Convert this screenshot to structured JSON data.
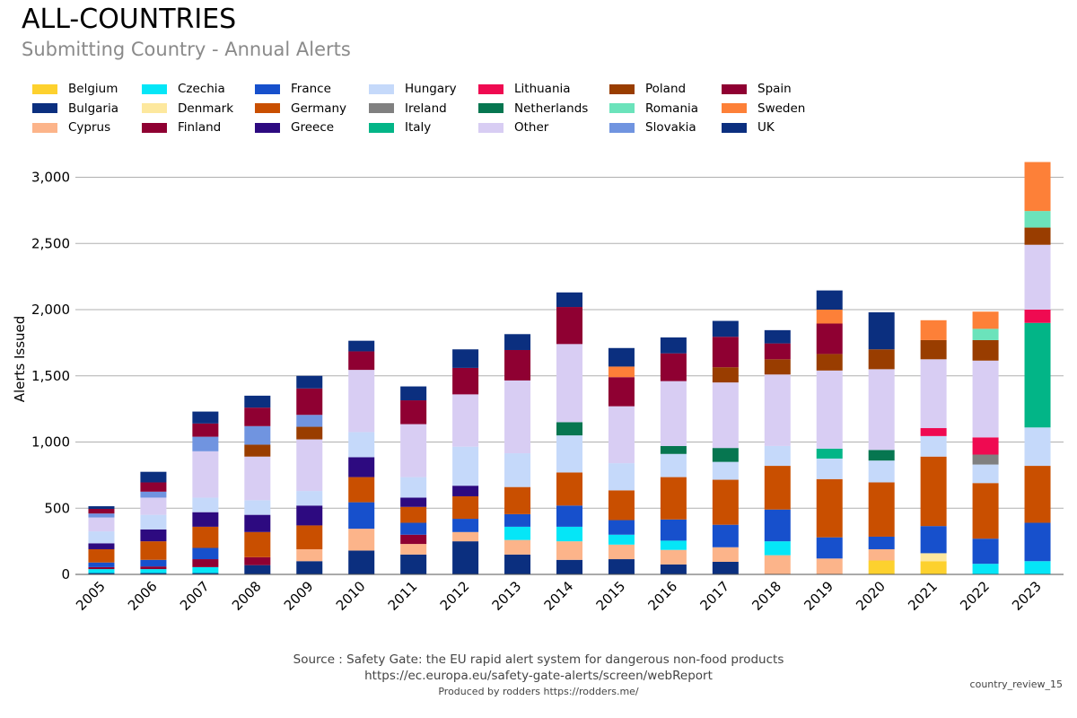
{
  "page": {
    "title": "ALL-COUNTRIES",
    "subtitle": "Submitting Country - Annual Alerts",
    "source_line1": "Source : Safety Gate: the EU rapid alert system for dangerous non-food products",
    "source_line2": "https://ec.europa.eu/safety-gate-alerts/screen/webReport",
    "credit": "Produced by rodders https://rodders.me/",
    "review_id": "country_review_15"
  },
  "chart_data": {
    "type": "bar",
    "stacked": true,
    "ylabel": "Alerts Issued",
    "xlabel": "",
    "ylim": [
      0,
      3200
    ],
    "yticks": [
      0,
      500,
      1000,
      1500,
      2000,
      2500,
      3000
    ],
    "ytick_labels": [
      "0",
      "500",
      "1,000",
      "1,500",
      "2,000",
      "2,500",
      "3,000"
    ],
    "grid": "horizontal",
    "legend_position": "top",
    "categories": [
      "2005",
      "2006",
      "2007",
      "2008",
      "2009",
      "2010",
      "2011",
      "2012",
      "2013",
      "2014",
      "2015",
      "2016",
      "2017",
      "2018",
      "2019",
      "2020",
      "2021",
      "2022",
      "2023"
    ],
    "series": [
      {
        "name": "Belgium",
        "color": "#fdd12e",
        "values": [
          0,
          0,
          0,
          0,
          0,
          0,
          0,
          0,
          0,
          0,
          0,
          0,
          0,
          0,
          0,
          105,
          100,
          0,
          0
        ]
      },
      {
        "name": "Bulgaria",
        "color": "#0b2f7f",
        "values": [
          10,
          10,
          10,
          70,
          100,
          180,
          150,
          250,
          150,
          110,
          115,
          75,
          95,
          0,
          0,
          0,
          0,
          0,
          0
        ]
      },
      {
        "name": "Cyprus",
        "color": "#fcb48a",
        "values": [
          0,
          0,
          0,
          0,
          90,
          165,
          80,
          70,
          110,
          140,
          110,
          110,
          110,
          145,
          120,
          85,
          0,
          0,
          0
        ]
      },
      {
        "name": "Czechia",
        "color": "#05e6f7",
        "values": [
          30,
          30,
          45,
          0,
          0,
          0,
          0,
          0,
          100,
          110,
          75,
          70,
          0,
          105,
          0,
          0,
          0,
          80,
          100
        ]
      },
      {
        "name": "Denmark",
        "color": "#fde89e",
        "values": [
          0,
          0,
          0,
          0,
          0,
          0,
          0,
          0,
          0,
          0,
          0,
          0,
          0,
          0,
          0,
          0,
          60,
          0,
          0
        ]
      },
      {
        "name": "Finland",
        "color": "#8f0032",
        "values": [
          15,
          20,
          60,
          60,
          0,
          0,
          70,
          0,
          0,
          0,
          0,
          0,
          0,
          0,
          0,
          0,
          0,
          0,
          0
        ]
      },
      {
        "name": "France",
        "color": "#1750cc",
        "values": [
          35,
          50,
          85,
          0,
          0,
          200,
          90,
          100,
          95,
          160,
          110,
          160,
          170,
          240,
          160,
          95,
          205,
          190,
          290
        ]
      },
      {
        "name": "Germany",
        "color": "#c94f00",
        "values": [
          100,
          140,
          160,
          190,
          180,
          190,
          120,
          170,
          205,
          250,
          225,
          320,
          340,
          330,
          440,
          410,
          525,
          420,
          430
        ]
      },
      {
        "name": "Greece",
        "color": "#2d0a80",
        "values": [
          45,
          90,
          110,
          130,
          150,
          150,
          70,
          80,
          0,
          0,
          0,
          0,
          0,
          0,
          0,
          0,
          0,
          0,
          0
        ]
      },
      {
        "name": "Hungary",
        "color": "#c5d9fa",
        "values": [
          90,
          110,
          110,
          110,
          110,
          190,
          155,
          295,
          255,
          280,
          205,
          175,
          135,
          150,
          155,
          165,
          155,
          140,
          290
        ]
      },
      {
        "name": "Ireland",
        "color": "#808080",
        "values": [
          0,
          0,
          0,
          0,
          0,
          0,
          0,
          0,
          0,
          0,
          0,
          0,
          0,
          0,
          0,
          0,
          0,
          75,
          0
        ]
      },
      {
        "name": "Italy",
        "color": "#02b587",
        "values": [
          0,
          0,
          0,
          0,
          0,
          0,
          0,
          0,
          0,
          0,
          0,
          0,
          0,
          0,
          75,
          0,
          0,
          0,
          790
        ]
      },
      {
        "name": "Lithuania",
        "color": "#ef0a51",
        "values": [
          0,
          0,
          0,
          0,
          0,
          0,
          0,
          0,
          0,
          0,
          0,
          0,
          0,
          0,
          0,
          0,
          60,
          130,
          100
        ]
      },
      {
        "name": "Netherlands",
        "color": "#067650",
        "values": [
          0,
          0,
          0,
          0,
          0,
          0,
          0,
          0,
          0,
          100,
          0,
          60,
          105,
          0,
          0,
          80,
          0,
          0,
          0
        ]
      },
      {
        "name": "Other",
        "color": "#d8cdf3",
        "values": [
          105,
          130,
          350,
          330,
          390,
          470,
          400,
          395,
          550,
          590,
          430,
          490,
          495,
          540,
          590,
          610,
          520,
          580,
          490
        ]
      },
      {
        "name": "Poland",
        "color": "#993d00",
        "values": [
          0,
          0,
          0,
          90,
          95,
          0,
          0,
          0,
          0,
          0,
          0,
          0,
          115,
          115,
          125,
          150,
          145,
          155,
          130
        ]
      },
      {
        "name": "Romania",
        "color": "#6be3bb",
        "values": [
          0,
          0,
          0,
          0,
          0,
          0,
          0,
          0,
          0,
          0,
          0,
          0,
          0,
          0,
          0,
          0,
          0,
          85,
          125
        ]
      },
      {
        "name": "Slovakia",
        "color": "#7094e0",
        "values": [
          30,
          45,
          110,
          140,
          90,
          0,
          0,
          0,
          0,
          0,
          0,
          0,
          0,
          0,
          0,
          0,
          0,
          0,
          0
        ]
      },
      {
        "name": "Spain",
        "color": "#8f0032",
        "values": [
          35,
          70,
          100,
          140,
          200,
          140,
          180,
          200,
          230,
          280,
          220,
          210,
          230,
          120,
          230,
          0,
          0,
          0,
          0
        ]
      },
      {
        "name": "Sweden",
        "color": "#fd8038",
        "values": [
          0,
          0,
          0,
          0,
          0,
          0,
          0,
          0,
          0,
          0,
          80,
          0,
          0,
          0,
          105,
          0,
          150,
          130,
          370
        ]
      },
      {
        "name": "UK",
        "color": "#0b2f7f",
        "values": [
          20,
          80,
          90,
          90,
          95,
          80,
          105,
          140,
          120,
          110,
          140,
          120,
          120,
          100,
          145,
          280,
          0,
          0,
          0
        ]
      }
    ]
  }
}
